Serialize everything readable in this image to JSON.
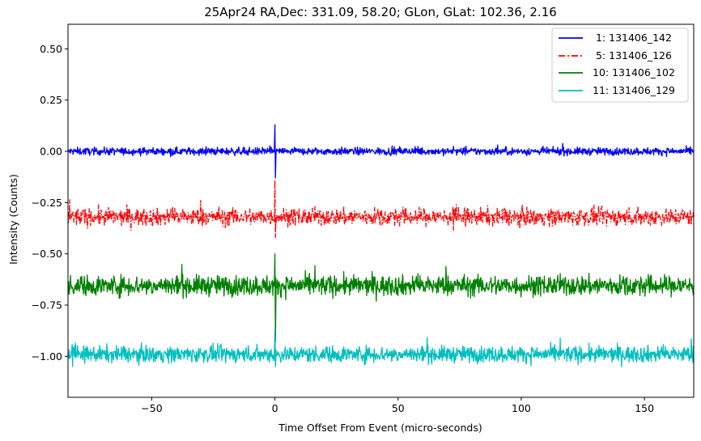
{
  "chart_data": {
    "type": "line",
    "title": "25Apr24 RA,Dec:  331.09,  58.20; GLon, GLat:  102.36,   2.16",
    "xlabel": "Time Offset From Event (micro-seconds)",
    "ylabel": "Intensity (Counts)",
    "xlim": [
      -84,
      170
    ],
    "ylim": [
      -1.2,
      0.62
    ],
    "xticks": [
      -50,
      0,
      50,
      100,
      150
    ],
    "xtick_labels": [
      "−50",
      "0",
      "50",
      "100",
      "150"
    ],
    "yticks": [
      0.5,
      0.25,
      0.0,
      -0.25,
      -0.5,
      -0.75,
      -1.0
    ],
    "ytick_labels": [
      "0.50",
      "0.25",
      "0.00",
      "−0.25",
      "−0.50",
      "−0.75",
      "−1.00"
    ],
    "legend_position": "top-right",
    "event_x": 0,
    "series": [
      {
        "name": " 1: 131406_142",
        "color": "#0000ff",
        "style": "solid",
        "baseline": 0.0,
        "noise": 0.013,
        "spike_min": -0.13,
        "spike_max": 0.13
      },
      {
        "name": " 5: 131406_126",
        "color": "#ff0000",
        "style": "dashdot",
        "baseline": -0.32,
        "noise": 0.03,
        "spike_min": -0.42,
        "spike_max": -0.14
      },
      {
        "name": "10: 131406_102",
        "color": "#008000",
        "style": "solid",
        "baseline": -0.655,
        "noise": 0.035,
        "spike_min": -0.93,
        "spike_max": -0.5
      },
      {
        "name": "11: 131406_129",
        "color": "#00bfbf",
        "style": "solid",
        "baseline": -0.99,
        "noise": 0.028,
        "spike_min": -1.05,
        "spike_max": -0.87
      }
    ]
  }
}
